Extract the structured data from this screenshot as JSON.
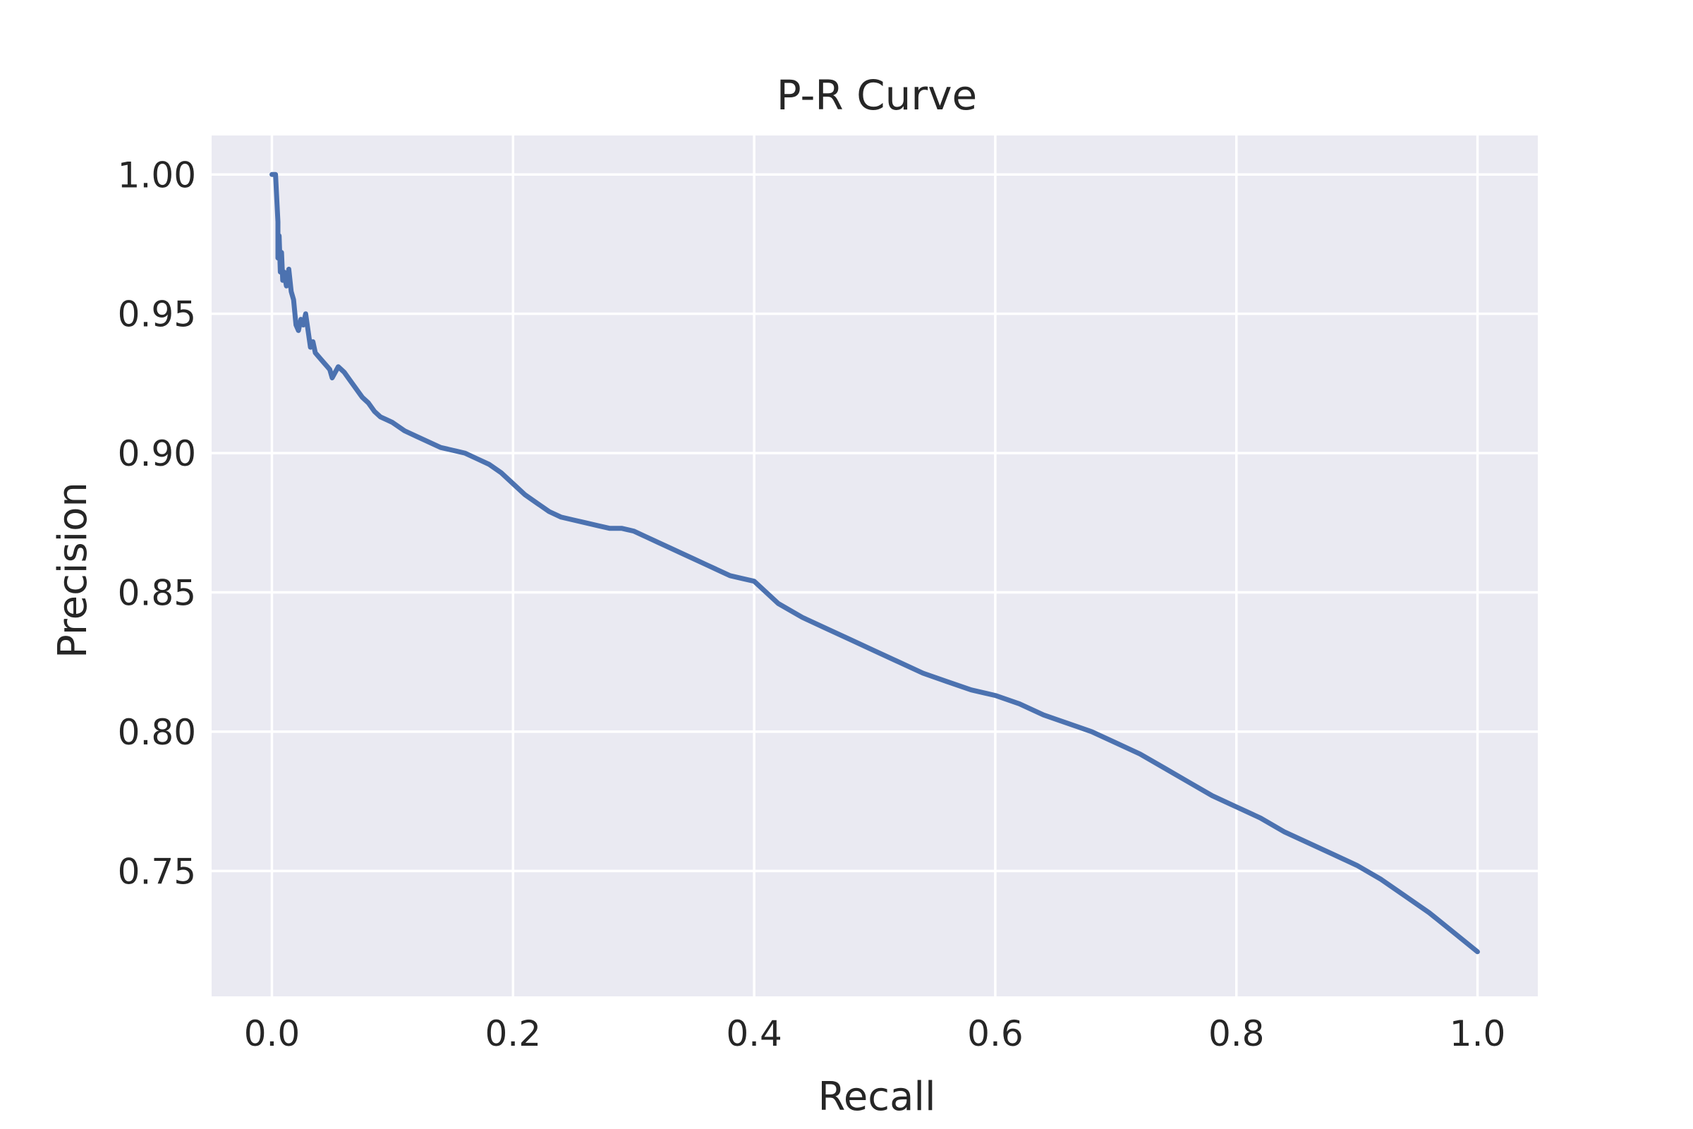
{
  "chart_data": {
    "type": "line",
    "title": "P-R Curve",
    "xlabel": "Recall",
    "ylabel": "Precision",
    "xlim": [
      -0.05,
      1.05
    ],
    "ylim": [
      0.705,
      1.014
    ],
    "xticks": [
      0.0,
      0.2,
      0.4,
      0.6,
      0.8,
      1.0
    ],
    "xtick_labels": [
      "0.0",
      "0.2",
      "0.4",
      "0.6",
      "0.8",
      "1.0"
    ],
    "yticks": [
      0.75,
      0.8,
      0.85,
      0.9,
      0.95,
      1.0
    ],
    "ytick_labels": [
      "0.75",
      "0.80",
      "0.85",
      "0.90",
      "0.95",
      "1.00"
    ],
    "grid": true,
    "series": [
      {
        "color": "#4c72b0",
        "x": [
          0.0,
          0.003,
          0.005,
          0.005,
          0.006,
          0.007,
          0.008,
          0.009,
          0.01,
          0.012,
          0.014,
          0.016,
          0.018,
          0.02,
          0.022,
          0.024,
          0.026,
          0.028,
          0.03,
          0.032,
          0.034,
          0.036,
          0.038,
          0.04,
          0.042,
          0.044,
          0.046,
          0.048,
          0.05,
          0.055,
          0.06,
          0.065,
          0.07,
          0.075,
          0.08,
          0.085,
          0.09,
          0.095,
          0.1,
          0.11,
          0.12,
          0.13,
          0.14,
          0.15,
          0.16,
          0.17,
          0.18,
          0.19,
          0.2,
          0.21,
          0.22,
          0.23,
          0.24,
          0.25,
          0.26,
          0.27,
          0.28,
          0.29,
          0.3,
          0.31,
          0.32,
          0.33,
          0.34,
          0.35,
          0.36,
          0.37,
          0.38,
          0.39,
          0.4,
          0.42,
          0.44,
          0.46,
          0.48,
          0.5,
          0.52,
          0.54,
          0.56,
          0.58,
          0.6,
          0.62,
          0.64,
          0.66,
          0.68,
          0.7,
          0.72,
          0.74,
          0.76,
          0.78,
          0.8,
          0.82,
          0.84,
          0.86,
          0.88,
          0.9,
          0.92,
          0.94,
          0.96,
          0.98,
          1.0
        ],
        "y": [
          1.0,
          1.0,
          0.983,
          0.97,
          0.978,
          0.965,
          0.972,
          0.962,
          0.965,
          0.96,
          0.966,
          0.958,
          0.955,
          0.946,
          0.944,
          0.948,
          0.946,
          0.95,
          0.944,
          0.938,
          0.94,
          0.936,
          0.935,
          0.934,
          0.933,
          0.932,
          0.931,
          0.93,
          0.927,
          0.931,
          0.929,
          0.926,
          0.923,
          0.92,
          0.918,
          0.915,
          0.913,
          0.912,
          0.911,
          0.908,
          0.906,
          0.904,
          0.902,
          0.901,
          0.9,
          0.898,
          0.896,
          0.893,
          0.889,
          0.885,
          0.882,
          0.879,
          0.877,
          0.876,
          0.875,
          0.874,
          0.873,
          0.873,
          0.872,
          0.87,
          0.868,
          0.866,
          0.864,
          0.862,
          0.86,
          0.858,
          0.856,
          0.855,
          0.854,
          0.846,
          0.841,
          0.837,
          0.833,
          0.829,
          0.825,
          0.821,
          0.818,
          0.815,
          0.813,
          0.81,
          0.806,
          0.803,
          0.8,
          0.796,
          0.792,
          0.787,
          0.782,
          0.777,
          0.773,
          0.769,
          0.764,
          0.76,
          0.756,
          0.752,
          0.747,
          0.741,
          0.735,
          0.728,
          0.721
        ]
      }
    ]
  }
}
